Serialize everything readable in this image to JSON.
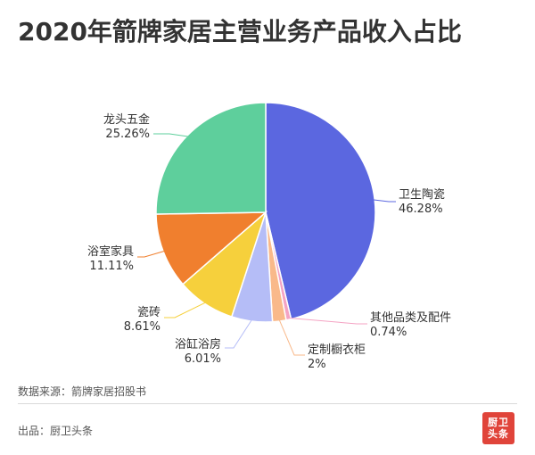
{
  "title": "2020年箭牌家居主营业务产品收入占比",
  "source": "数据来源：箭牌家居招股书",
  "footer": "出品：厨卫头条",
  "logo": {
    "line1": "厨卫",
    "line2": "头条"
  },
  "chart_data": {
    "type": "pie",
    "title": "2020年箭牌家居主营业务产品收入占比",
    "slices": [
      {
        "label": "卫生陶瓷",
        "value": 46.28,
        "value_label": "46.28%",
        "color": "#5b67e0"
      },
      {
        "label": "其他品类及配件",
        "value": 0.74,
        "value_label": "0.74%",
        "color": "#f4a3c3"
      },
      {
        "label": "定制橱衣柜",
        "value": 2,
        "value_label": "2%",
        "color": "#f9b98a"
      },
      {
        "label": "浴缸浴房",
        "value": 6.01,
        "value_label": "6.01%",
        "color": "#b5bdf7"
      },
      {
        "label": "瓷砖",
        "value": 8.61,
        "value_label": "8.61%",
        "color": "#f6d03c"
      },
      {
        "label": "浴室家具",
        "value": 11.11,
        "value_label": "11.11%",
        "color": "#f07f2e"
      },
      {
        "label": "龙头五金",
        "value": 25.26,
        "value_label": "25.26%",
        "color": "#5ecf9c"
      }
    ]
  }
}
